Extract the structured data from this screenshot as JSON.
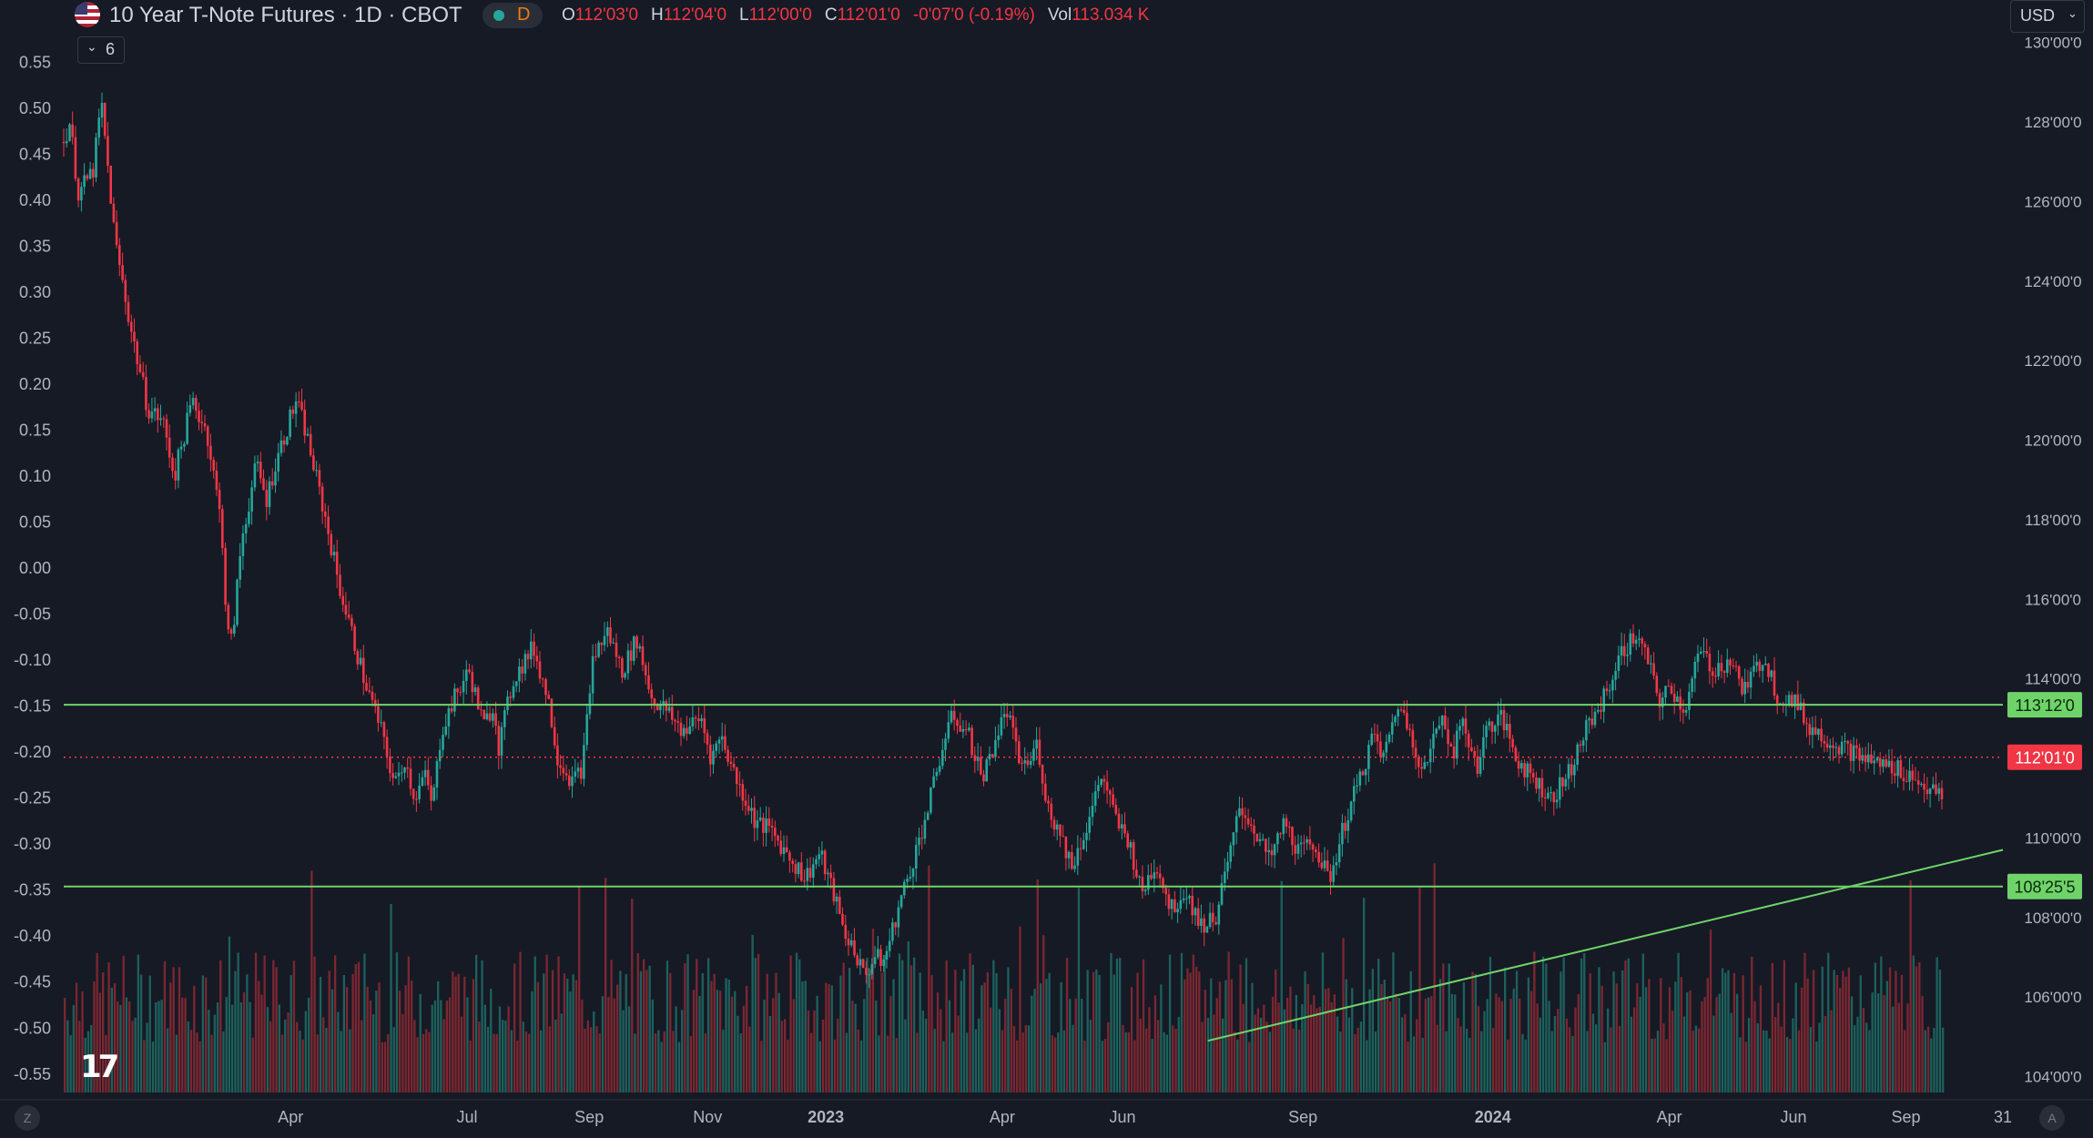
{
  "header": {
    "symbol_title": "10 Year T-Note Futures · 1D · CBOT",
    "status_letter": "D",
    "ohlc": {
      "o_label": "O",
      "o_value": "112'03'0",
      "h_label": "H",
      "h_value": "112'04'0",
      "l_label": "L",
      "l_value": "112'00'0",
      "c_label": "C",
      "c_value": "112'01'0",
      "change": "-0'07'0 (-0.19%)",
      "vol_label": "Vol",
      "vol_value": "113.034 K"
    },
    "indicator_count": "6",
    "currency": "USD"
  },
  "footer": {
    "left_button": "Z",
    "right_button": "A"
  },
  "colors": {
    "background": "#161a25",
    "up": "#26a69a",
    "down": "#f23645",
    "level_line": "#6fd36a",
    "text": "#b2b5be"
  },
  "icons": {
    "flag": "us-flag-icon",
    "logo": "tradingview-logo-icon",
    "chevron": "chevron-down-icon"
  },
  "chart_data": {
    "type": "candlestick",
    "title": "10 Year T-Note Futures · 1D · CBOT",
    "x_ticks": [
      "Apr",
      "Jul",
      "Sep",
      "Nov",
      "2023",
      "Apr",
      "Jun",
      "Sep",
      "2024",
      "Apr",
      "Jun",
      "Sep",
      "31"
    ],
    "x_tick_positions": [
      0.117,
      0.208,
      0.271,
      0.332,
      0.393,
      0.484,
      0.546,
      0.639,
      0.737,
      0.828,
      0.892,
      0.95,
      1.0
    ],
    "right_axis": {
      "ticks": [
        "130'00'0",
        "128'00'0",
        "126'00'0",
        "124'00'0",
        "122'00'0",
        "120'00'0",
        "118'00'0",
        "116'00'0",
        "114'00'0",
        "110'00'0",
        "108'00'0",
        "106'00'0",
        "104'00'0"
      ],
      "tick_values": [
        130,
        128,
        126,
        124,
        122,
        120,
        118,
        116,
        114,
        110,
        108,
        106,
        104
      ],
      "range": [
        103.6,
        130.2
      ]
    },
    "left_axis": {
      "ticks": [
        "0.55",
        "0.50",
        "0.45",
        "0.40",
        "0.35",
        "0.30",
        "0.25",
        "0.20",
        "0.15",
        "0.10",
        "0.05",
        "0.00",
        "-0.05",
        "-0.10",
        "-0.15",
        "-0.20",
        "-0.25",
        "-0.30",
        "-0.35",
        "-0.40",
        "-0.45",
        "-0.50",
        "-0.55"
      ],
      "range": [
        -0.57,
        0.58
      ]
    },
    "price_path": [
      [
        0.0,
        127.5
      ],
      [
        0.006,
        128.0
      ],
      [
        0.015,
        126.2
      ],
      [
        0.03,
        126.8
      ],
      [
        0.038,
        128.5
      ],
      [
        0.052,
        125.0
      ],
      [
        0.068,
        122.8
      ],
      [
        0.085,
        120.8
      ],
      [
        0.1,
        120.5
      ],
      [
        0.112,
        119.1
      ],
      [
        0.13,
        121.0
      ],
      [
        0.145,
        120.2
      ],
      [
        0.16,
        117.8
      ],
      [
        0.165,
        115.2
      ],
      [
        0.17,
        114.9
      ],
      [
        0.18,
        117.5
      ],
      [
        0.195,
        119.4
      ],
      [
        0.205,
        118.5
      ],
      [
        0.215,
        119.5
      ],
      [
        0.235,
        121.0
      ],
      [
        0.245,
        120.2
      ],
      [
        0.265,
        118.0
      ],
      [
        0.28,
        116.2
      ],
      [
        0.305,
        113.9
      ],
      [
        0.32,
        112.8
      ],
      [
        0.335,
        111.3
      ],
      [
        0.345,
        112.0
      ],
      [
        0.355,
        111.0
      ],
      [
        0.365,
        111.6
      ],
      [
        0.373,
        110.8
      ],
      [
        0.382,
        112.7
      ],
      [
        0.395,
        113.5
      ],
      [
        0.41,
        114.2
      ],
      [
        0.425,
        112.8
      ],
      [
        0.435,
        113.4
      ],
      [
        0.44,
        112.3
      ],
      [
        0.455,
        114.0
      ],
      [
        0.475,
        114.8
      ],
      [
        0.49,
        113.5
      ],
      [
        0.5,
        112.0
      ],
      [
        0.515,
        111.4
      ],
      [
        0.525,
        111.8
      ],
      [
        0.535,
        114.5
      ],
      [
        0.55,
        115.2
      ],
      [
        0.565,
        114.2
      ],
      [
        0.58,
        115.0
      ],
      [
        0.595,
        113.5
      ],
      [
        0.61,
        113.2
      ],
      [
        0.625,
        112.7
      ],
      [
        0.645,
        113.0
      ],
      [
        0.655,
        112.0
      ],
      [
        0.665,
        112.6
      ],
      [
        0.68,
        111.5
      ],
      [
        0.7,
        110.4
      ],
      [
        0.715,
        110.2
      ],
      [
        0.735,
        109.5
      ],
      [
        0.75,
        109.0
      ],
      [
        0.765,
        109.6
      ],
      [
        0.78,
        108.5
      ],
      [
        0.79,
        107.6
      ],
      [
        0.8,
        107.2
      ],
      [
        0.81,
        106.5
      ],
      [
        0.82,
        107.0
      ],
      [
        0.83,
        106.9
      ],
      [
        0.845,
        108.3
      ],
      [
        0.86,
        109.5
      ],
      [
        0.875,
        110.8
      ],
      [
        0.89,
        112.4
      ],
      [
        0.9,
        113.1
      ],
      [
        0.915,
        112.6
      ],
      [
        0.93,
        111.5
      ],
      [
        0.945,
        112.7
      ],
      [
        0.955,
        113.2
      ],
      [
        0.965,
        112.0
      ],
      [
        0.975,
        111.8
      ],
      [
        0.985,
        112.4
      ],
      [
        0.995,
        110.8
      ],
      [
        1.01,
        110.0
      ],
      [
        1.02,
        109.3
      ],
      [
        1.035,
        110.3
      ],
      [
        1.05,
        111.6
      ],
      [
        1.065,
        110.4
      ],
      [
        1.078,
        109.9
      ],
      [
        1.09,
        108.6
      ],
      [
        1.105,
        109.4
      ],
      [
        1.12,
        108.2
      ],
      [
        1.135,
        108.7
      ],
      [
        1.15,
        107.8
      ],
      [
        1.165,
        108.0
      ],
      [
        1.18,
        109.6
      ],
      [
        1.19,
        110.8
      ],
      [
        1.205,
        110.2
      ],
      [
        1.22,
        109.4
      ],
      [
        1.235,
        110.4
      ],
      [
        1.25,
        109.6
      ],
      [
        1.265,
        109.9
      ],
      [
        1.28,
        108.9
      ],
      [
        1.295,
        110.3
      ],
      [
        1.31,
        111.4
      ],
      [
        1.325,
        112.6
      ],
      [
        1.335,
        112.0
      ],
      [
        1.35,
        113.4
      ],
      [
        1.365,
        112.5
      ],
      [
        1.375,
        111.6
      ],
      [
        1.385,
        112.4
      ],
      [
        1.395,
        113.2
      ],
      [
        1.405,
        112.1
      ],
      [
        1.415,
        112.9
      ],
      [
        1.43,
        111.8
      ],
      [
        1.44,
        112.8
      ],
      [
        1.455,
        113.0
      ],
      [
        1.47,
        112.0
      ],
      [
        1.49,
        111.4
      ],
      [
        1.505,
        111.0
      ],
      [
        1.52,
        111.5
      ],
      [
        1.54,
        112.7
      ],
      [
        1.56,
        113.6
      ],
      [
        1.575,
        114.6
      ],
      [
        1.59,
        115.1
      ],
      [
        1.6,
        114.6
      ],
      [
        1.615,
        113.4
      ],
      [
        1.625,
        113.8
      ],
      [
        1.64,
        113.2
      ],
      [
        1.655,
        114.7
      ],
      [
        1.67,
        114.2
      ],
      [
        1.685,
        114.5
      ],
      [
        1.7,
        113.7
      ],
      [
        1.72,
        114.6
      ],
      [
        1.735,
        113.5
      ],
      [
        1.75,
        113.5
      ],
      [
        1.765,
        112.8
      ],
      [
        1.79,
        112.4
      ],
      [
        1.82,
        112.0
      ],
      [
        1.86,
        111.7
      ],
      [
        1.9,
        111.0
      ]
    ],
    "levels": [
      {
        "label": "113'12'0",
        "value": 113.35,
        "style": "solid",
        "color": "#6fd36a"
      },
      {
        "label": "108'25'5",
        "value": 108.78,
        "style": "solid",
        "color": "#6fd36a"
      },
      {
        "label": "112'01'0",
        "value": 112.03,
        "style": "dotted",
        "color": "#f23645"
      }
    ],
    "trendline": {
      "from": [
        0.59,
        104.9
      ],
      "to": [
        1.0,
        109.7
      ],
      "color": "#6fd36a"
    },
    "volume": {
      "shown": true,
      "max_fraction_of_height": 0.19
    },
    "grid": false
  }
}
